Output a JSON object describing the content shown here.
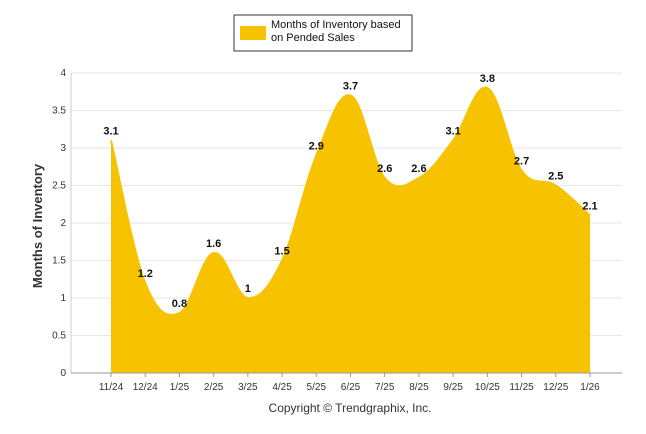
{
  "chart_data": {
    "type": "area",
    "categories": [
      "11/24",
      "12/24",
      "1/25",
      "2/25",
      "3/25",
      "4/25",
      "5/25",
      "6/25",
      "7/25",
      "8/25",
      "9/25",
      "10/25",
      "11/25",
      "12/25",
      "1/26"
    ],
    "series": [
      {
        "name": "Months of Inventory based on Pended Sales",
        "values": [
          3.1,
          1.2,
          0.8,
          1.6,
          1.0,
          1.5,
          2.9,
          3.7,
          2.6,
          2.6,
          3.1,
          3.8,
          2.7,
          2.5,
          2.1
        ],
        "color": "#F7C300"
      }
    ],
    "data_labels": [
      "3.1",
      "1.2",
      "0.8",
      "1.6",
      "1",
      "1.5",
      "2.9",
      "3.7",
      "2.6",
      "2.6",
      "3.1",
      "3.8",
      "2.7",
      "2.5",
      "2.1"
    ],
    "xlabel": "",
    "ylabel": "Months of Inventory",
    "ylim": [
      0,
      4
    ],
    "yticks": [
      "0",
      "0.5",
      "1",
      "1.5",
      "2",
      "2.5",
      "3",
      "3.5",
      "4"
    ],
    "grid": true,
    "legend_position": "top-center",
    "legend_lines": [
      "Months of Inventory based",
      "on Pended Sales"
    ]
  },
  "footer": {
    "copyright": "Copyright © Trendgraphix, Inc."
  }
}
